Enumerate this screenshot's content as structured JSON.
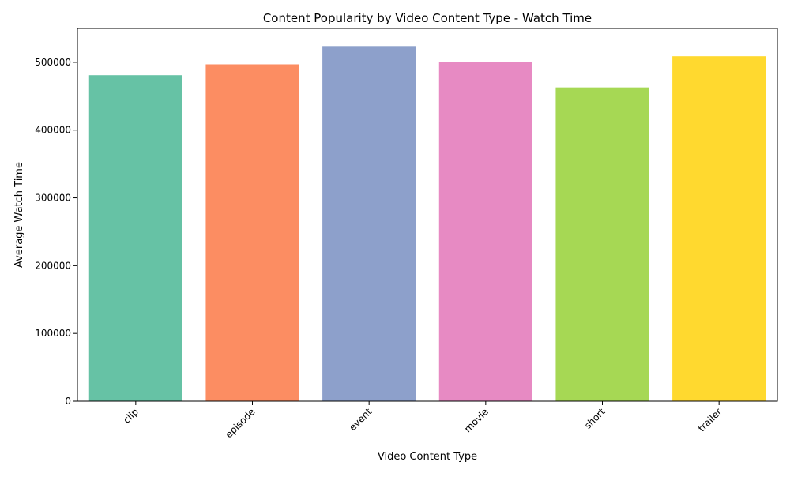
{
  "chart_data": {
    "type": "bar",
    "title": "Content Popularity by Video Content Type - Watch Time",
    "xlabel": "Video Content Type",
    "ylabel": "Average Watch Time",
    "categories": [
      "clip",
      "episode",
      "event",
      "movie",
      "short",
      "trailer"
    ],
    "values": [
      481000,
      497000,
      524000,
      500000,
      463000,
      509000
    ],
    "colors": [
      "#66c2a5",
      "#fc8d62",
      "#8da0cb",
      "#e78ac3",
      "#a6d854",
      "#ffd92f"
    ],
    "ylim": [
      0,
      550000
    ],
    "yticks": [
      0,
      100000,
      200000,
      300000,
      400000,
      500000
    ],
    "ytick_labels": [
      "0",
      "100000",
      "200000",
      "300000",
      "400000",
      "500000"
    ],
    "grid": false,
    "legend": "none"
  }
}
